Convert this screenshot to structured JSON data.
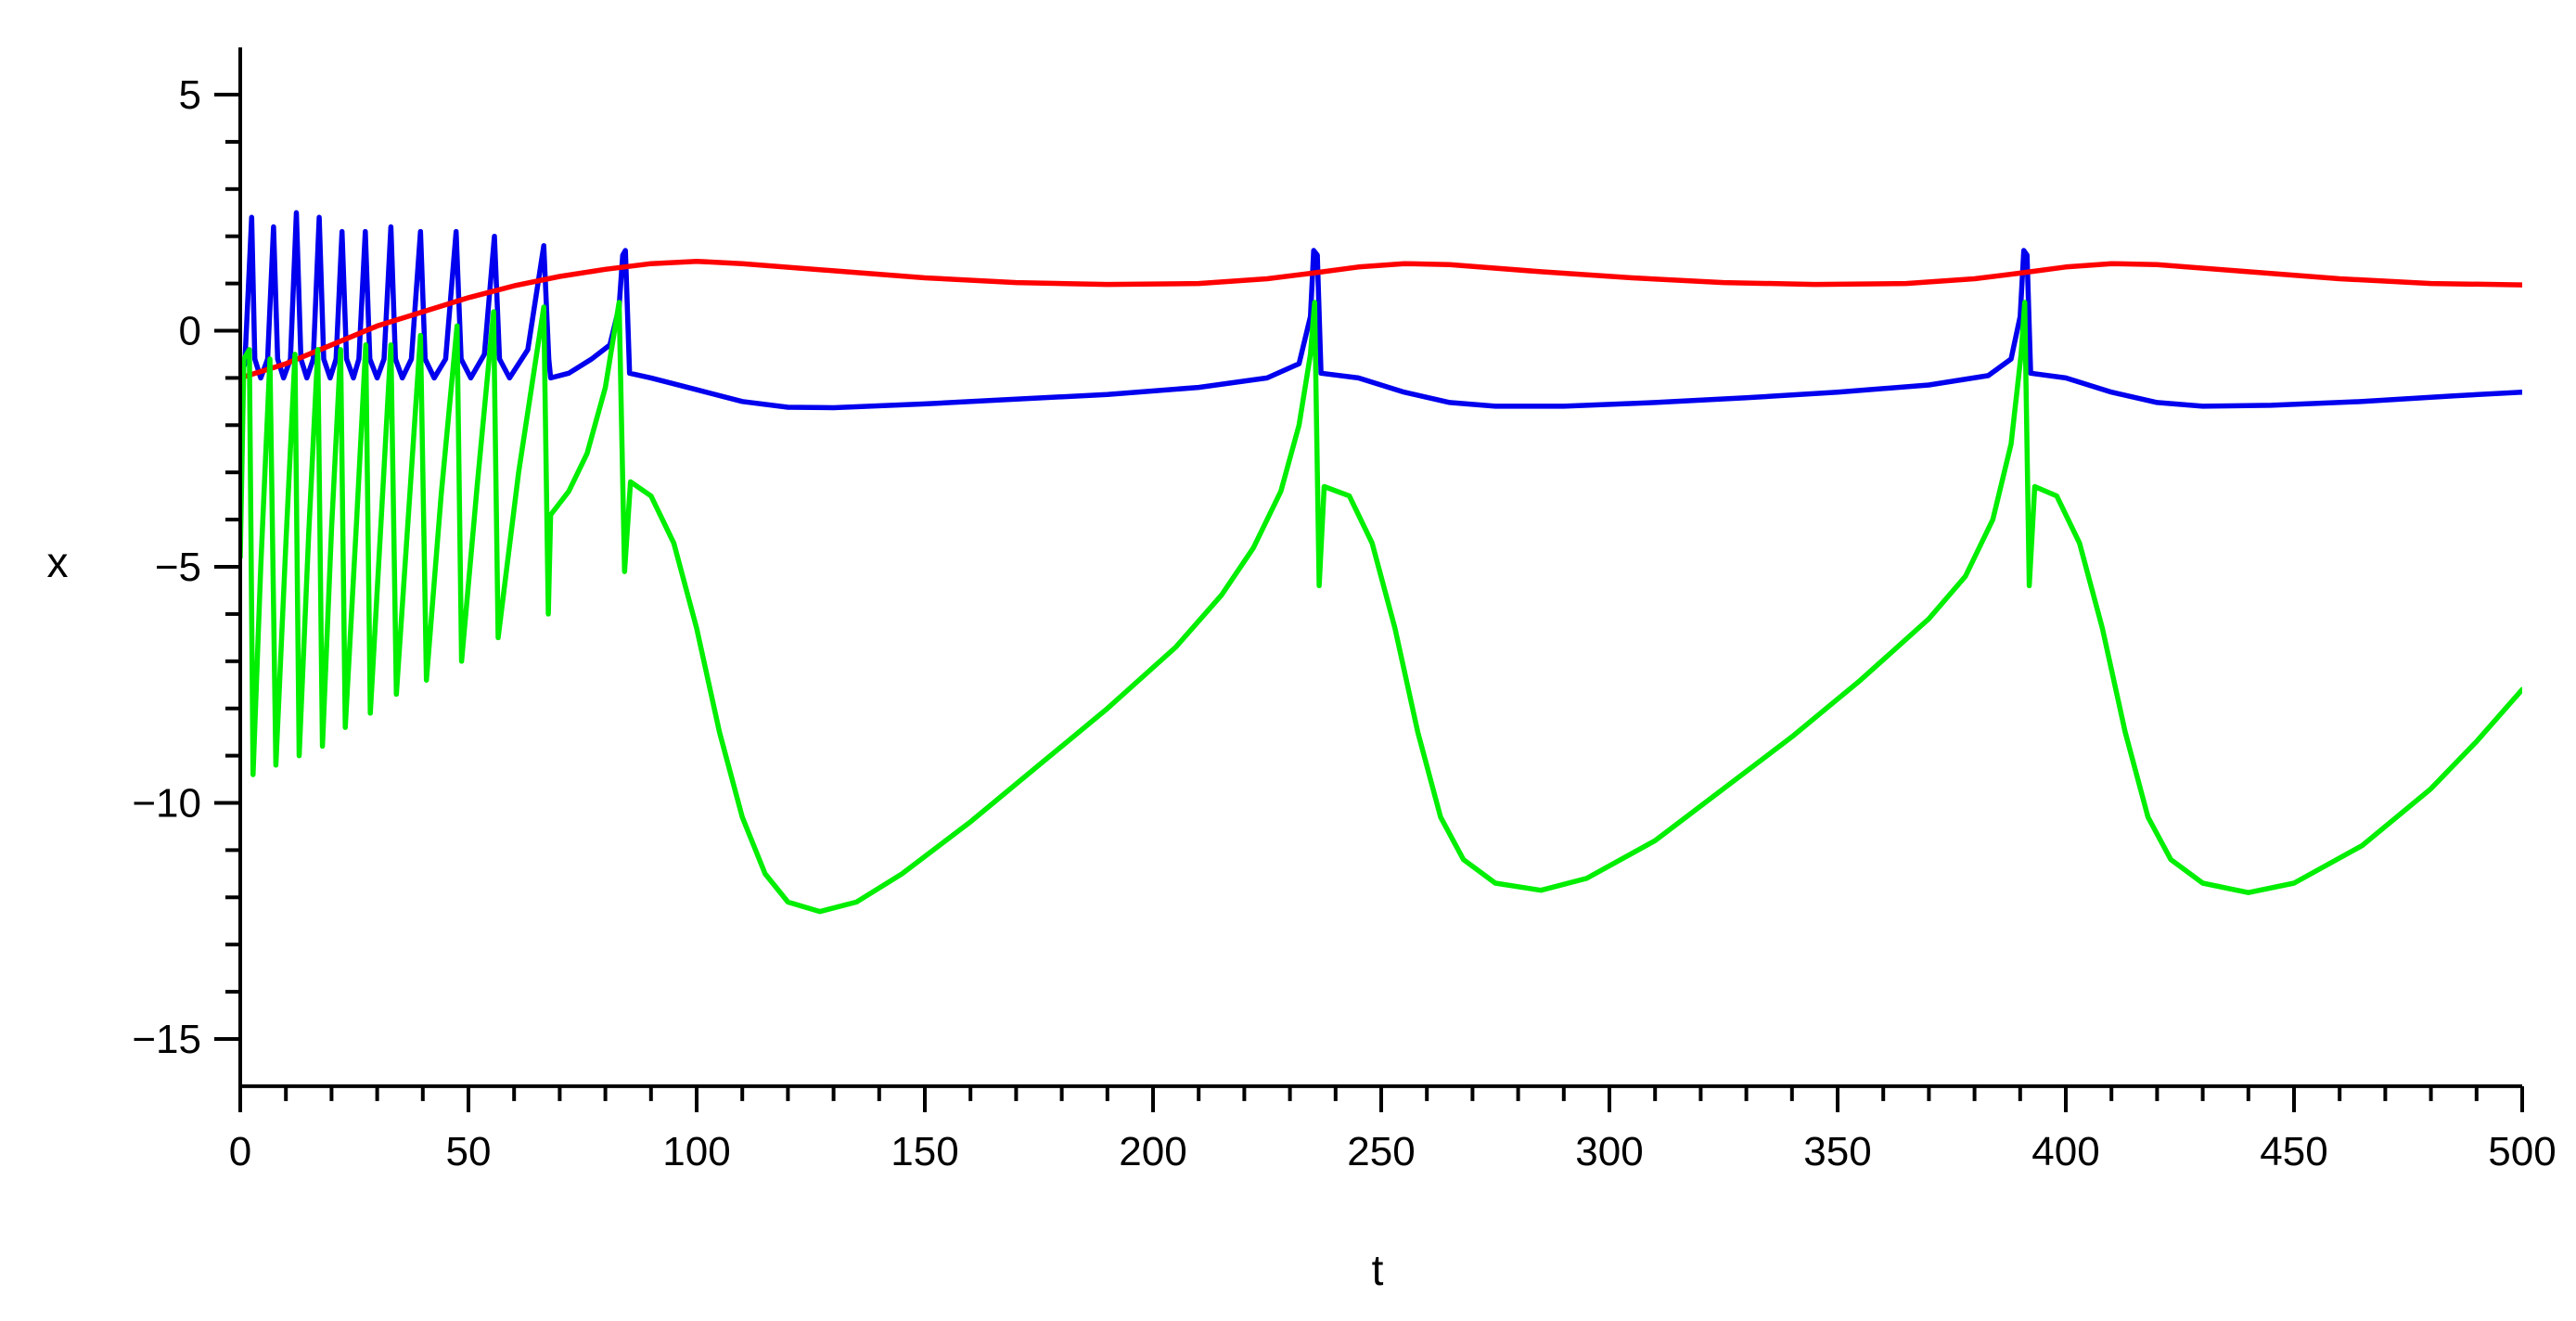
{
  "chart_data": {
    "type": "line",
    "title": "",
    "xlabel": "t",
    "ylabel": "x",
    "xlim": [
      0,
      500
    ],
    "ylim": [
      -16,
      6
    ],
    "x_ticks": [
      0,
      50,
      100,
      150,
      200,
      250,
      300,
      350,
      400,
      450,
      500
    ],
    "x_tick_labels": [
      "0",
      "50",
      "100",
      "150",
      "200",
      "250",
      "300",
      "350",
      "400",
      "450",
      "500"
    ],
    "y_ticks": [
      5,
      0,
      -5,
      -10,
      -15
    ],
    "y_tick_labels": [
      "5",
      "0",
      "−5",
      "−10",
      "−15"
    ],
    "grid": false,
    "legend": "none",
    "series": [
      {
        "color": "#0000ee",
        "points": [
          [
            0,
            -1.0
          ],
          [
            1,
            -0.7
          ],
          [
            2.5,
            2.4
          ],
          [
            3.2,
            -0.6
          ],
          [
            4.5,
            -1.0
          ],
          [
            6,
            -0.6
          ],
          [
            7.3,
            2.2
          ],
          [
            8.2,
            -0.6
          ],
          [
            9.5,
            -1.0
          ],
          [
            11,
            -0.6
          ],
          [
            12.3,
            2.5
          ],
          [
            13.3,
            -0.6
          ],
          [
            14.6,
            -1.0
          ],
          [
            16,
            -0.6
          ],
          [
            17.3,
            2.4
          ],
          [
            18.3,
            -0.6
          ],
          [
            19.7,
            -1.0
          ],
          [
            21,
            -0.6
          ],
          [
            22.3,
            2.1
          ],
          [
            23.3,
            -0.6
          ],
          [
            24.8,
            -1.0
          ],
          [
            26,
            -0.6
          ],
          [
            27.4,
            2.1
          ],
          [
            28.4,
            -0.6
          ],
          [
            30,
            -1.0
          ],
          [
            31.5,
            -0.6
          ],
          [
            33,
            2.2
          ],
          [
            34,
            -0.6
          ],
          [
            35.5,
            -1.0
          ],
          [
            37.5,
            -0.6
          ],
          [
            39.5,
            2.1
          ],
          [
            40.5,
            -0.6
          ],
          [
            42.5,
            -1.0
          ],
          [
            45,
            -0.6
          ],
          [
            47.3,
            2.1
          ],
          [
            48.4,
            -0.6
          ],
          [
            50.5,
            -1.0
          ],
          [
            53.5,
            -0.5
          ],
          [
            55.7,
            2.0
          ],
          [
            56.8,
            -0.6
          ],
          [
            59,
            -1.0
          ],
          [
            63,
            -0.4
          ],
          [
            66.5,
            1.8
          ],
          [
            67.6,
            -0.6
          ],
          [
            68,
            -1.0
          ],
          [
            72,
            -0.9
          ],
          [
            77,
            -0.6
          ],
          [
            81,
            -0.3
          ],
          [
            83,
            0.5
          ],
          [
            83.8,
            1.6
          ],
          [
            84.4,
            1.7
          ],
          [
            85.3,
            -0.9
          ],
          [
            90,
            -1.0
          ],
          [
            100,
            -1.25
          ],
          [
            110,
            -1.5
          ],
          [
            120,
            -1.62
          ],
          [
            130,
            -1.63
          ],
          [
            150,
            -1.55
          ],
          [
            170,
            -1.45
          ],
          [
            190,
            -1.35
          ],
          [
            210,
            -1.2
          ],
          [
            225,
            -1.0
          ],
          [
            232,
            -0.7
          ],
          [
            234.5,
            0.3
          ],
          [
            235.2,
            1.7
          ],
          [
            236,
            1.6
          ],
          [
            236.8,
            -0.9
          ],
          [
            245,
            -1.0
          ],
          [
            255,
            -1.3
          ],
          [
            265,
            -1.52
          ],
          [
            275,
            -1.6
          ],
          [
            290,
            -1.6
          ],
          [
            310,
            -1.52
          ],
          [
            330,
            -1.42
          ],
          [
            350,
            -1.3
          ],
          [
            370,
            -1.15
          ],
          [
            383,
            -0.95
          ],
          [
            388,
            -0.6
          ],
          [
            390,
            0.3
          ],
          [
            390.8,
            1.7
          ],
          [
            391.5,
            1.6
          ],
          [
            392.3,
            -0.9
          ],
          [
            400,
            -1.0
          ],
          [
            410,
            -1.3
          ],
          [
            420,
            -1.52
          ],
          [
            430,
            -1.6
          ],
          [
            445,
            -1.58
          ],
          [
            465,
            -1.5
          ],
          [
            485,
            -1.38
          ],
          [
            500,
            -1.3
          ]
        ]
      },
      {
        "color": "#ff0000",
        "points": [
          [
            0,
            -1.0
          ],
          [
            10,
            -0.7
          ],
          [
            20,
            -0.3
          ],
          [
            30,
            0.1
          ],
          [
            40,
            0.4
          ],
          [
            50,
            0.7
          ],
          [
            60,
            0.95
          ],
          [
            70,
            1.15
          ],
          [
            80,
            1.3
          ],
          [
            90,
            1.42
          ],
          [
            100,
            1.47
          ],
          [
            110,
            1.42
          ],
          [
            130,
            1.27
          ],
          [
            150,
            1.12
          ],
          [
            170,
            1.02
          ],
          [
            190,
            0.98
          ],
          [
            210,
            1.0
          ],
          [
            225,
            1.1
          ],
          [
            235,
            1.22
          ],
          [
            245,
            1.35
          ],
          [
            255,
            1.42
          ],
          [
            265,
            1.4
          ],
          [
            285,
            1.25
          ],
          [
            305,
            1.12
          ],
          [
            325,
            1.02
          ],
          [
            345,
            0.98
          ],
          [
            365,
            1.0
          ],
          [
            380,
            1.1
          ],
          [
            390,
            1.22
          ],
          [
            400,
            1.35
          ],
          [
            410,
            1.42
          ],
          [
            420,
            1.4
          ],
          [
            440,
            1.25
          ],
          [
            460,
            1.1
          ],
          [
            480,
            1.0
          ],
          [
            500,
            0.97
          ]
        ]
      },
      {
        "color": "#00ee00",
        "points": [
          [
            0,
            -4.8
          ],
          [
            0.8,
            -0.6
          ],
          [
            2,
            -0.4
          ],
          [
            2.8,
            -9.4
          ],
          [
            4.5,
            -5.0
          ],
          [
            6.5,
            -0.6
          ],
          [
            7.8,
            -9.2
          ],
          [
            10,
            -4.5
          ],
          [
            12,
            -0.5
          ],
          [
            12.9,
            -9.0
          ],
          [
            15,
            -4.3
          ],
          [
            17,
            -0.4
          ],
          [
            18,
            -8.8
          ],
          [
            20,
            -4.2
          ],
          [
            22,
            -0.4
          ],
          [
            23,
            -8.4
          ],
          [
            25.5,
            -4.0
          ],
          [
            27.5,
            -0.3
          ],
          [
            28.5,
            -8.1
          ],
          [
            31,
            -3.8
          ],
          [
            33,
            -0.3
          ],
          [
            34.2,
            -7.7
          ],
          [
            37,
            -3.7
          ],
          [
            39.5,
            -0.1
          ],
          [
            40.8,
            -7.4
          ],
          [
            44,
            -3.5
          ],
          [
            47.5,
            0.1
          ],
          [
            48.5,
            -7.0
          ],
          [
            52,
            -3.2
          ],
          [
            55.5,
            0.4
          ],
          [
            56.5,
            -6.5
          ],
          [
            61,
            -3.0
          ],
          [
            66.5,
            0.5
          ],
          [
            67.5,
            -6.0
          ],
          [
            68,
            -3.9
          ],
          [
            72,
            -3.4
          ],
          [
            76,
            -2.6
          ],
          [
            80,
            -1.2
          ],
          [
            83,
            0.6
          ],
          [
            84.2,
            -5.1
          ],
          [
            85.5,
            -3.2
          ],
          [
            90,
            -3.5
          ],
          [
            95,
            -4.5
          ],
          [
            100,
            -6.3
          ],
          [
            105,
            -8.5
          ],
          [
            110,
            -10.3
          ],
          [
            115,
            -11.5
          ],
          [
            120,
            -12.1
          ],
          [
            127,
            -12.3
          ],
          [
            135,
            -12.1
          ],
          [
            145,
            -11.5
          ],
          [
            160,
            -10.4
          ],
          [
            175,
            -9.2
          ],
          [
            190,
            -8.0
          ],
          [
            205,
            -6.7
          ],
          [
            215,
            -5.6
          ],
          [
            222,
            -4.6
          ],
          [
            228,
            -3.4
          ],
          [
            232,
            -2.0
          ],
          [
            234.5,
            -0.5
          ],
          [
            235.4,
            0.6
          ],
          [
            236.4,
            -5.4
          ],
          [
            237.5,
            -3.3
          ],
          [
            243,
            -3.5
          ],
          [
            248,
            -4.5
          ],
          [
            253,
            -6.3
          ],
          [
            258,
            -8.5
          ],
          [
            263,
            -10.3
          ],
          [
            268,
            -11.2
          ],
          [
            275,
            -11.7
          ],
          [
            285,
            -11.85
          ],
          [
            295,
            -11.6
          ],
          [
            310,
            -10.8
          ],
          [
            325,
            -9.7
          ],
          [
            340,
            -8.6
          ],
          [
            355,
            -7.4
          ],
          [
            370,
            -6.1
          ],
          [
            378,
            -5.2
          ],
          [
            384,
            -4.0
          ],
          [
            388,
            -2.4
          ],
          [
            390.2,
            -0.5
          ],
          [
            391,
            0.6
          ],
          [
            392,
            -5.4
          ],
          [
            393.2,
            -3.3
          ],
          [
            398,
            -3.5
          ],
          [
            403,
            -4.5
          ],
          [
            408,
            -6.3
          ],
          [
            413,
            -8.5
          ],
          [
            418,
            -10.3
          ],
          [
            423,
            -11.2
          ],
          [
            430,
            -11.7
          ],
          [
            440,
            -11.9
          ],
          [
            450,
            -11.7
          ],
          [
            465,
            -10.9
          ],
          [
            480,
            -9.7
          ],
          [
            490,
            -8.7
          ],
          [
            500,
            -7.6
          ]
        ]
      }
    ]
  }
}
